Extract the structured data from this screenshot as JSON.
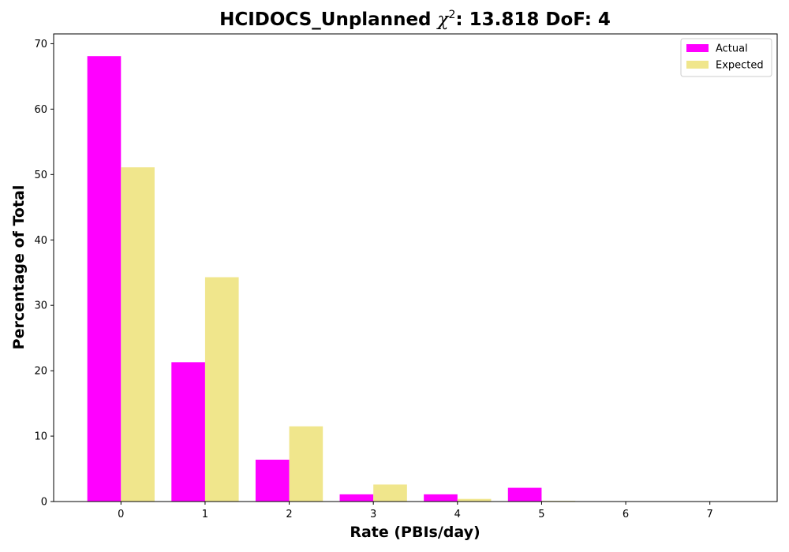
{
  "chart_data": {
    "type": "bar",
    "title_prefix": "HCIDOCS_Unplanned ",
    "title_chi": "χ",
    "title_sup": "2",
    "title_suffix": ": 13.818 DoF: 4",
    "xlabel": "Rate (PBIs/day)",
    "ylabel": "Percentage of Total",
    "categories": [
      "0",
      "1",
      "2",
      "3",
      "4",
      "5",
      "6",
      "7"
    ],
    "ylim": [
      0,
      71.5
    ],
    "xlim": [
      -0.8,
      7.8
    ],
    "yticks": [
      0,
      10,
      20,
      30,
      40,
      50,
      60,
      70
    ],
    "grid": false,
    "legend_position": "top-right",
    "series": [
      {
        "name": "Actual",
        "color": "#ff00ff",
        "values": [
          68.1,
          21.3,
          6.4,
          1.1,
          1.1,
          2.1,
          0.0,
          0.0
        ]
      },
      {
        "name": "Expected",
        "color": "#f0e68c",
        "values": [
          51.1,
          34.3,
          11.5,
          2.6,
          0.4,
          0.1,
          0.0,
          0.0
        ]
      }
    ]
  }
}
